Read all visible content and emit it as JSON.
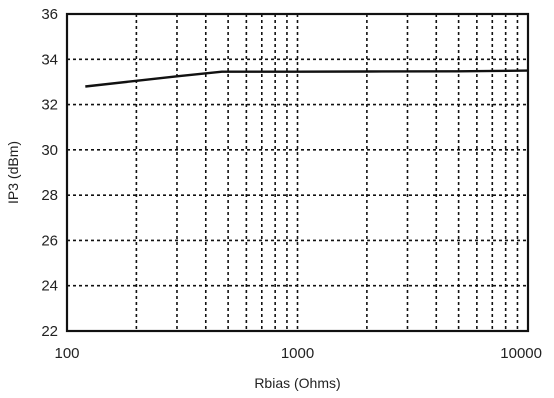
{
  "chart_data": {
    "type": "line",
    "title": "",
    "xlabel": "Rbias (Ohms)",
    "ylabel": "IP3 (dBm)",
    "xscale": "log",
    "xlim": [
      100,
      10000
    ],
    "ylim": [
      22,
      36
    ],
    "x_ticks": [
      100,
      1000,
      10000
    ],
    "x_tick_labels": [
      "100",
      "1000",
      "10000"
    ],
    "y_ticks": [
      22,
      24,
      26,
      28,
      30,
      32,
      34,
      36
    ],
    "y_tick_labels": [
      "22",
      "24",
      "26",
      "28",
      "30",
      "32",
      "34",
      "36"
    ],
    "grid": true,
    "series": [
      {
        "x": [
          120,
          200,
          300,
          470,
          700,
          1000,
          2000,
          5000,
          10000
        ],
        "y": [
          32.8,
          33.05,
          33.25,
          33.45,
          33.45,
          33.45,
          33.46,
          33.47,
          33.5
        ]
      }
    ]
  }
}
